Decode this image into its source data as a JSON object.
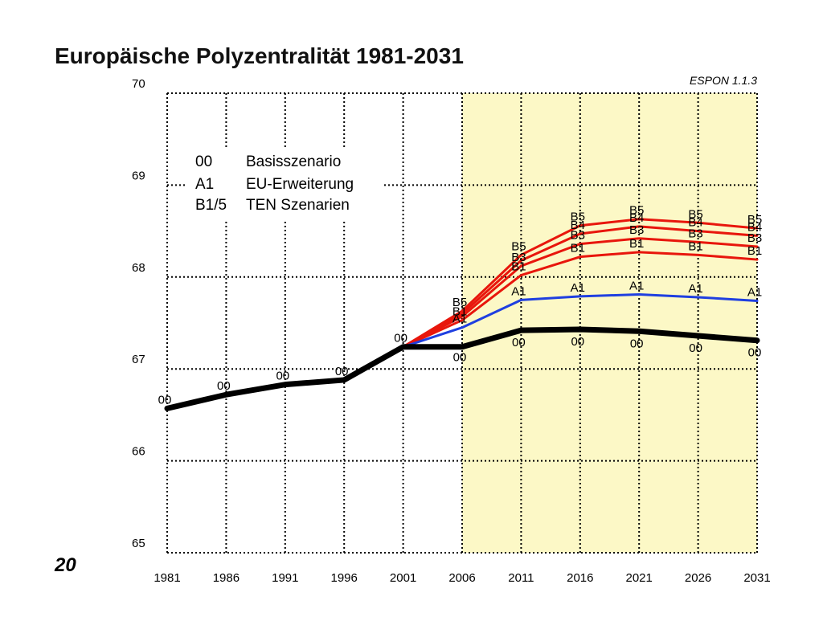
{
  "slide": {
    "title": "Europäische Polyzentralität 1981-2031",
    "page_number": "20"
  },
  "legend": [
    {
      "code": "00",
      "text": "Basisszenario"
    },
    {
      "code": "A1",
      "text": "EU-Erweiterung"
    },
    {
      "code": "B1/5",
      "text": "TEN Szenarien"
    }
  ],
  "chart_data": {
    "type": "line",
    "title": "Europäische Polyzentralität 1981-2031",
    "source_label": "ESPON 1.1.3",
    "xlabel": "",
    "ylabel": "",
    "xlim": [
      1981,
      2031
    ],
    "ylim": [
      65,
      70
    ],
    "x_ticks": [
      "1981",
      "1986",
      "1991",
      "1996",
      "2001",
      "2006",
      "2011",
      "2016",
      "2021",
      "2026",
      "2031"
    ],
    "y_ticks": [
      "65",
      "66",
      "67",
      "68",
      "69",
      "70"
    ],
    "grid": true,
    "highlight_range": [
      2006,
      2031
    ],
    "colors": {
      "base": "#000000",
      "enlargement": "#1f3fe0",
      "ten": "#e8160c",
      "highlight": "#fcf8c6"
    },
    "series": [
      {
        "name": "00",
        "color": "#000000",
        "width": 7,
        "x": [
          1981,
          1986,
          1991,
          1996,
          2001,
          2006,
          2011,
          2016,
          2021,
          2026,
          2031
        ],
        "y": [
          66.57,
          66.72,
          66.83,
          66.88,
          67.24,
          67.24,
          67.42,
          67.43,
          67.41,
          67.36,
          67.31
        ],
        "labels": [
          "00",
          "00",
          "00",
          "00",
          "00",
          "00",
          "00",
          "00",
          "00",
          "00",
          "00"
        ]
      },
      {
        "name": "A1",
        "color": "#1f3fe0",
        "width": 3,
        "x": [
          2001,
          2006,
          2011,
          2016,
          2021,
          2026,
          2031
        ],
        "y": [
          67.24,
          67.45,
          67.75,
          67.79,
          67.81,
          67.78,
          67.74
        ],
        "labels": [
          "",
          "A1",
          "A1",
          "A1",
          "A1",
          "A1",
          "A1"
        ]
      },
      {
        "name": "B1",
        "color": "#e8160c",
        "width": 3,
        "x": [
          2001,
          2006,
          2011,
          2016,
          2021,
          2026,
          2031
        ],
        "y": [
          67.24,
          67.53,
          68.02,
          68.22,
          68.27,
          68.24,
          68.19
        ],
        "labels": [
          "",
          "B1",
          "B1",
          "B1",
          "B1",
          "B1",
          "B1"
        ]
      },
      {
        "name": "B3",
        "color": "#e8160c",
        "width": 3,
        "x": [
          2001,
          2006,
          2011,
          2016,
          2021,
          2026,
          2031
        ],
        "y": [
          67.24,
          67.57,
          68.12,
          68.36,
          68.42,
          68.38,
          68.33
        ],
        "labels": [
          "",
          "",
          "B3",
          "B3",
          "B3",
          "B3",
          "B3"
        ]
      },
      {
        "name": "B4",
        "color": "#e8160c",
        "width": 3,
        "x": [
          2001,
          2006,
          2011,
          2016,
          2021,
          2026,
          2031
        ],
        "y": [
          67.24,
          67.6,
          68.18,
          68.47,
          68.55,
          68.5,
          68.45
        ],
        "labels": [
          "",
          "",
          "",
          "B4",
          "B4",
          "B4",
          "B4"
        ]
      },
      {
        "name": "B5",
        "color": "#e8160c",
        "width": 3,
        "x": [
          2001,
          2006,
          2011,
          2016,
          2021,
          2026,
          2031
        ],
        "y": [
          67.24,
          67.63,
          68.24,
          68.56,
          68.63,
          68.59,
          68.53
        ],
        "labels": [
          "",
          "B5",
          "B5",
          "B5",
          "B5",
          "B5",
          "B5"
        ]
      }
    ]
  }
}
